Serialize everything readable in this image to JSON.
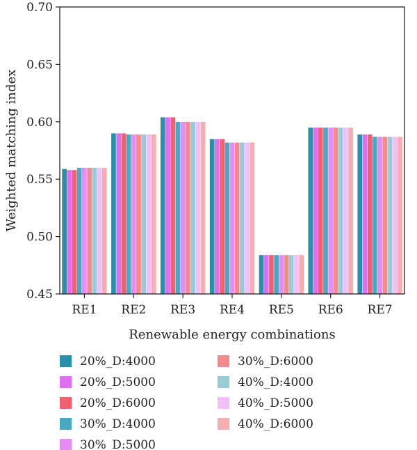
{
  "chart_data": {
    "type": "bar",
    "xlabel": "Renewable energy combinations",
    "ylabel": "Weighted matching index",
    "ylim": [
      0.45,
      0.7
    ],
    "yticks": [
      "0.45",
      "0.50",
      "0.55",
      "0.60",
      "0.65",
      "0.70"
    ],
    "categories": [
      "RE1",
      "RE2",
      "RE3",
      "RE4",
      "RE5",
      "RE6",
      "RE7"
    ],
    "legend_position": "bottom",
    "series": [
      {
        "name": "20%_D:4000",
        "color": "#2a8fa8",
        "values": [
          0.559,
          0.59,
          0.604,
          0.585,
          0.484,
          0.595,
          0.589
        ]
      },
      {
        "name": "20%_D:5000",
        "color": "#e06ef0",
        "values": [
          0.558,
          0.59,
          0.604,
          0.585,
          0.484,
          0.595,
          0.589
        ]
      },
      {
        "name": "20%_D:6000",
        "color": "#f06070",
        "values": [
          0.558,
          0.59,
          0.604,
          0.585,
          0.484,
          0.595,
          0.589
        ]
      },
      {
        "name": "30%_D:4000",
        "color": "#4aa8c0",
        "values": [
          0.56,
          0.589,
          0.6,
          0.582,
          0.484,
          0.595,
          0.587
        ]
      },
      {
        "name": "30%_D:5000",
        "color": "#e68cf5",
        "values": [
          0.56,
          0.589,
          0.6,
          0.582,
          0.484,
          0.595,
          0.587
        ]
      },
      {
        "name": "30%_D:6000",
        "color": "#f58a8e",
        "values": [
          0.56,
          0.589,
          0.6,
          0.582,
          0.484,
          0.595,
          0.587
        ]
      },
      {
        "name": "40%_D:4000",
        "color": "#98cad8",
        "values": [
          0.56,
          0.589,
          0.6,
          0.582,
          0.484,
          0.595,
          0.587
        ]
      },
      {
        "name": "40%_D:5000",
        "color": "#f1c0f8",
        "values": [
          0.56,
          0.589,
          0.6,
          0.582,
          0.484,
          0.595,
          0.587
        ]
      },
      {
        "name": "40%_D:6000",
        "color": "#f8adb0",
        "values": [
          0.56,
          0.589,
          0.6,
          0.582,
          0.484,
          0.595,
          0.587
        ]
      }
    ]
  }
}
